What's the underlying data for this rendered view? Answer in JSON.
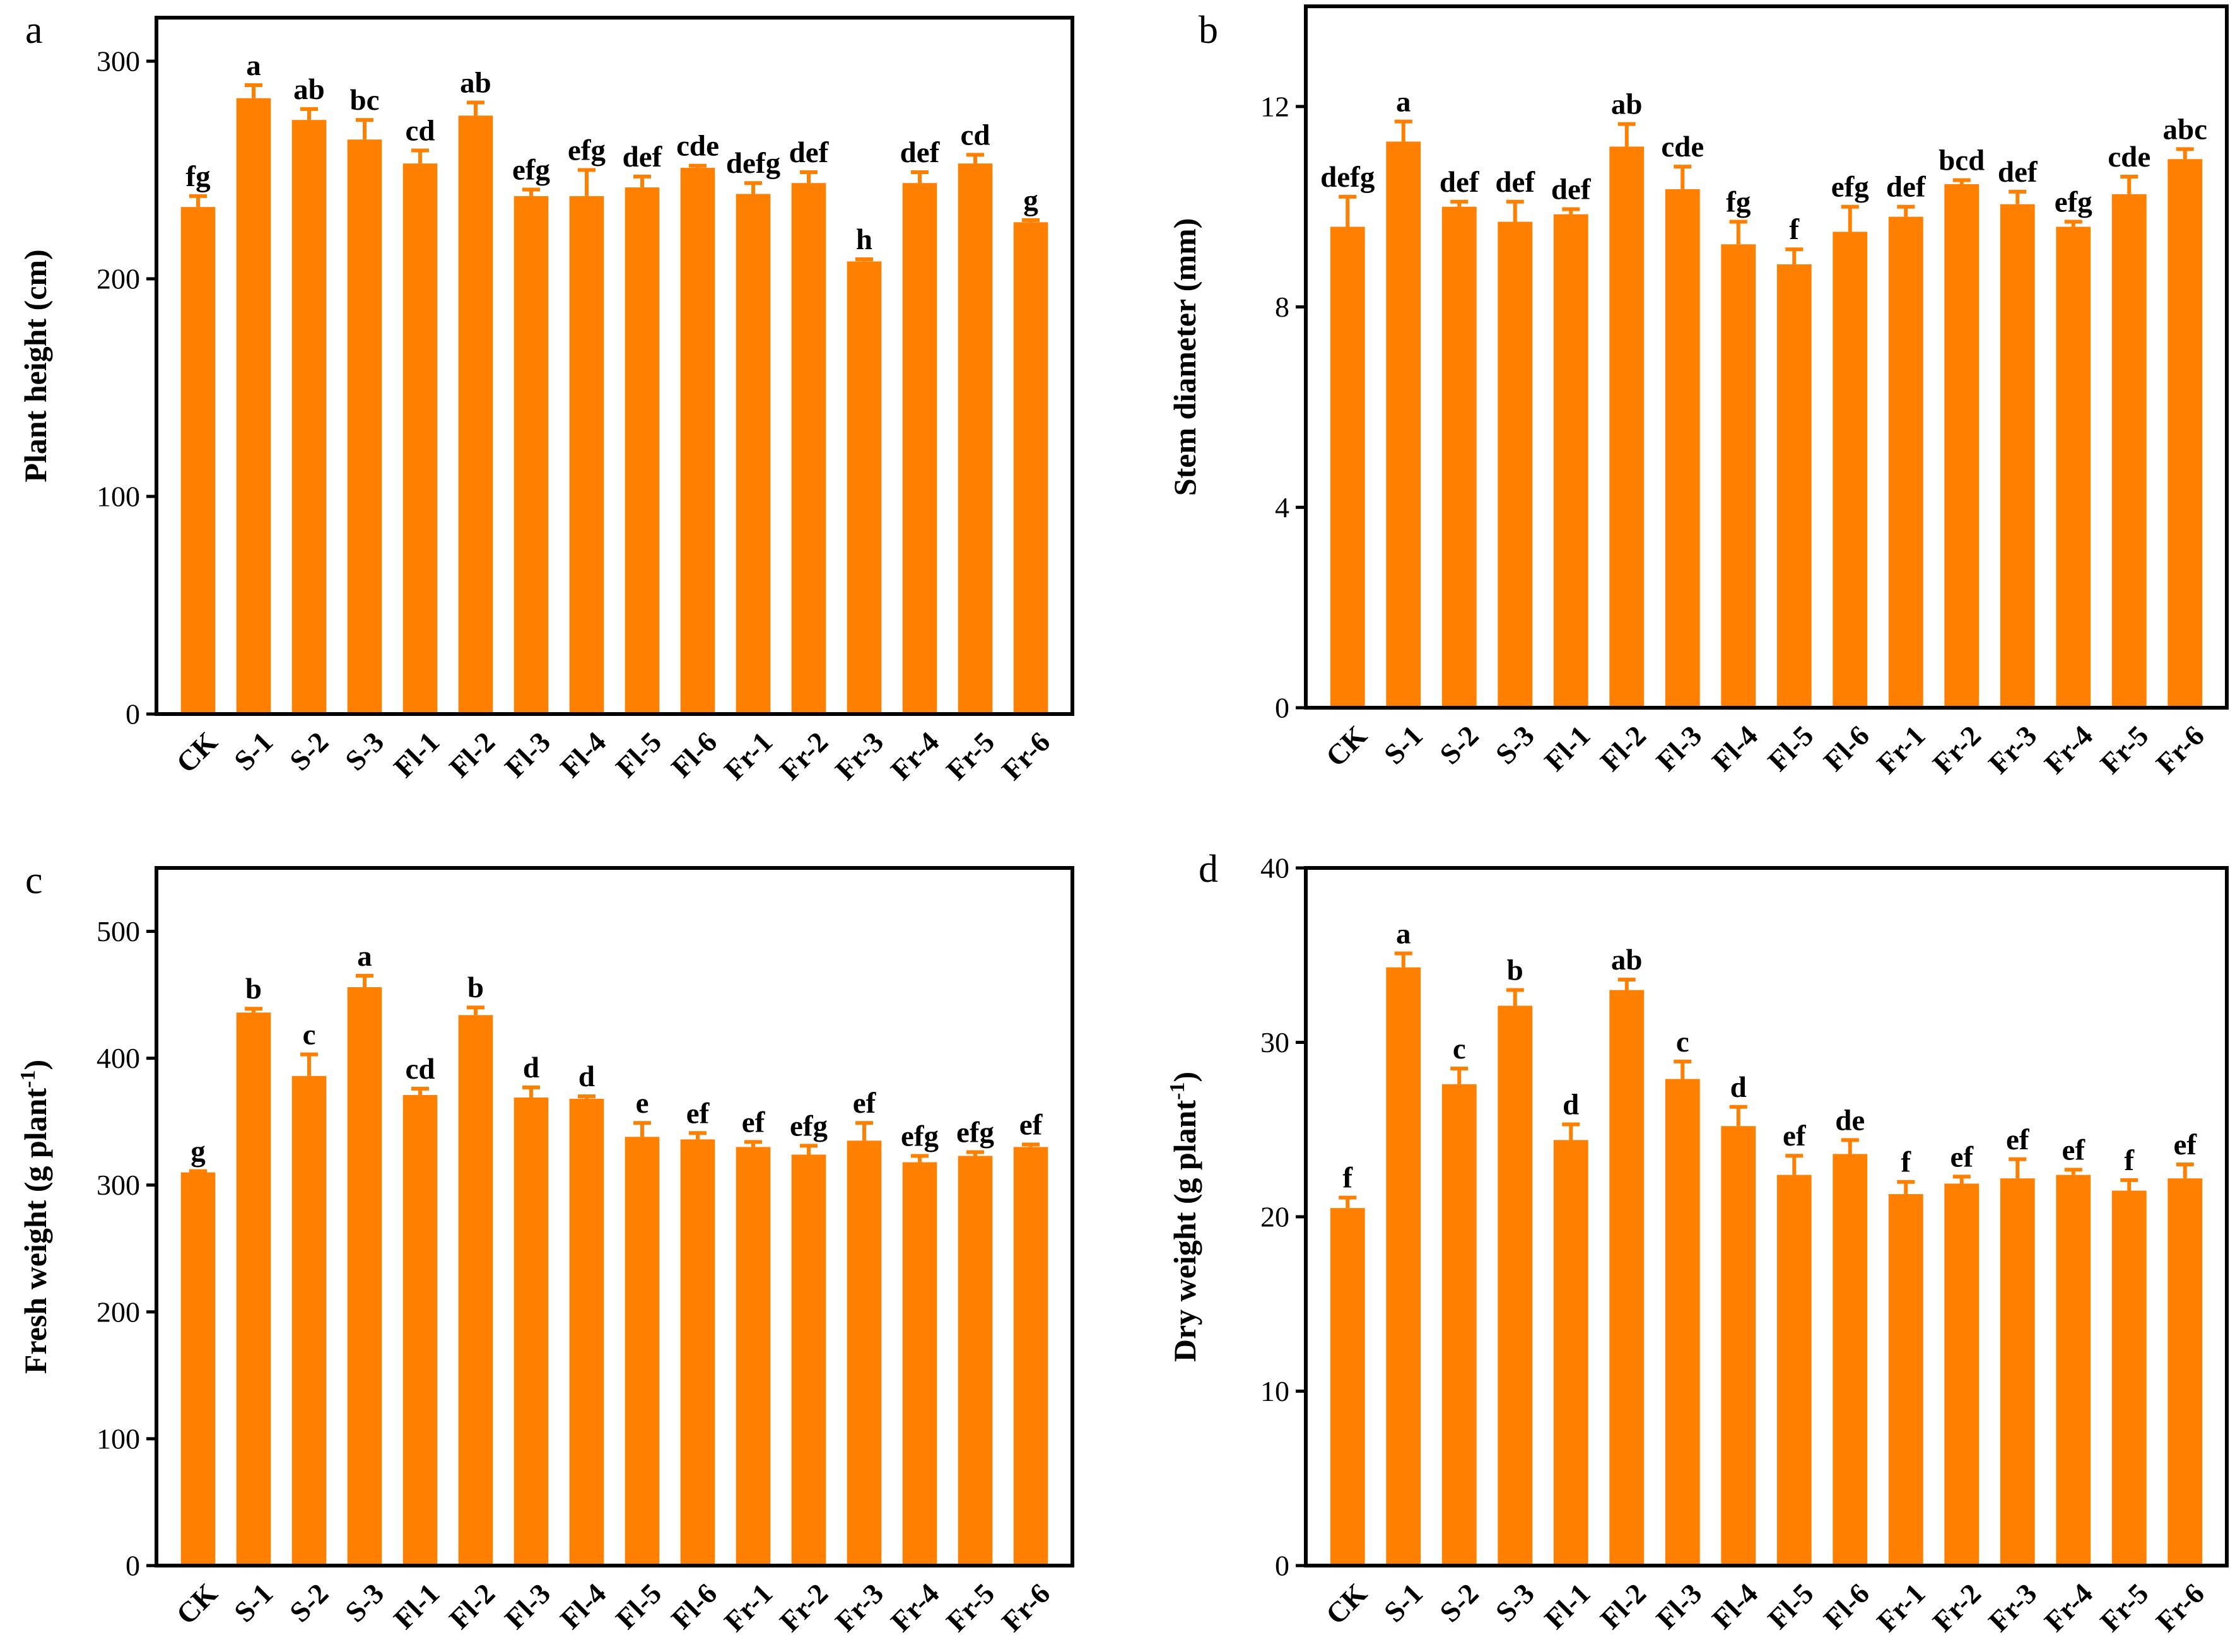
{
  "colors": {
    "bar": "#ff8000",
    "axis": "#000000",
    "background": "#ffffff"
  },
  "chart_data": [
    {
      "panel": "a",
      "type": "bar",
      "categories": [
        "CK",
        "S-1",
        "S-2",
        "S-3",
        "Fl-1",
        "Fl-2",
        "Fl-3",
        "Fl-4",
        "Fl-5",
        "Fl-6",
        "Fr-1",
        "Fr-2",
        "Fr-3",
        "Fr-4",
        "Fr-5",
        "Fr-6"
      ],
      "values": [
        233,
        283,
        273,
        264,
        253,
        275,
        238,
        238,
        242,
        251,
        239,
        244,
        208,
        244,
        253,
        226
      ],
      "errors": [
        5,
        6,
        5,
        9,
        6,
        6,
        3,
        12,
        5,
        1,
        5,
        5,
        1,
        5,
        4,
        1
      ],
      "letters": [
        "fg",
        "a",
        "ab",
        "bc",
        "cd",
        "ab",
        "efg",
        "efg",
        "def",
        "cde",
        "defg",
        "def",
        "h",
        "def",
        "cd",
        "g"
      ],
      "ylabel": "Plant height (cm)",
      "ylabel_sup": "",
      "ylabel_tail": "",
      "ylim": [
        0,
        320
      ],
      "yticks": [
        0,
        100,
        200,
        300
      ],
      "grid": false
    },
    {
      "panel": "b",
      "type": "bar",
      "categories": [
        "CK",
        "S-1",
        "S-2",
        "S-3",
        "Fl-1",
        "Fl-2",
        "Fl-3",
        "Fl-4",
        "Fl-5",
        "Fl-6",
        "Fr-1",
        "Fr-2",
        "Fr-3",
        "Fr-4",
        "Fr-5",
        "Fr-6"
      ],
      "values": [
        9.6,
        11.3,
        10.0,
        9.7,
        9.85,
        11.2,
        10.35,
        9.25,
        8.85,
        9.5,
        9.8,
        10.45,
        10.05,
        9.6,
        10.25,
        10.95
      ],
      "errors": [
        0.6,
        0.4,
        0.1,
        0.4,
        0.1,
        0.45,
        0.45,
        0.45,
        0.3,
        0.5,
        0.2,
        0.08,
        0.25,
        0.1,
        0.35,
        0.2
      ],
      "letters": [
        "defg",
        "a",
        "def",
        "def",
        "def",
        "ab",
        "cde",
        "fg",
        "f",
        "efg",
        "def",
        "bcd",
        "def",
        "efg",
        "cde",
        "abc"
      ],
      "ylabel": "Stem diameter (mm)",
      "ylabel_sup": "",
      "ylabel_tail": "",
      "ylim": [
        0,
        14
      ],
      "yticks": [
        0,
        4,
        8,
        12
      ],
      "grid": false
    },
    {
      "panel": "c",
      "type": "bar",
      "categories": [
        "CK",
        "S-1",
        "S-2",
        "S-3",
        "Fl-1",
        "Fl-2",
        "Fl-3",
        "Fl-4",
        "Fl-5",
        "Fl-6",
        "Fr-1",
        "Fr-2",
        "Fr-3",
        "Fr-4",
        "Fr-5",
        "Fr-6"
      ],
      "values": [
        310,
        436,
        386,
        456,
        371,
        434,
        369,
        368,
        338,
        336,
        330,
        324,
        335,
        318,
        323,
        330
      ],
      "errors": [
        1,
        3,
        17,
        9,
        5,
        6,
        8,
        2,
        11,
        5,
        4,
        7,
        14,
        5,
        3,
        2
      ],
      "letters": [
        "g",
        "b",
        "c",
        "a",
        "cd",
        "b",
        "d",
        "d",
        "e",
        "ef",
        "ef",
        "efg",
        "ef",
        "efg",
        "efg",
        "ef"
      ],
      "ylabel": "Fresh weight (g plant",
      "ylabel_sup": "-1",
      "ylabel_tail": ")",
      "ylim": [
        0,
        550
      ],
      "yticks": [
        0,
        100,
        200,
        300,
        400,
        500
      ],
      "grid": false
    },
    {
      "panel": "d",
      "type": "bar",
      "categories": [
        "CK",
        "S-1",
        "S-2",
        "S-3",
        "Fl-1",
        "Fl-2",
        "Fl-3",
        "Fl-4",
        "Fl-5",
        "Fl-6",
        "Fr-1",
        "Fr-2",
        "Fr-3",
        "Fr-4",
        "Fr-5",
        "Fr-6"
      ],
      "values": [
        20.5,
        34.3,
        27.6,
        32.1,
        24.4,
        33.0,
        27.9,
        25.2,
        22.4,
        23.6,
        21.3,
        21.9,
        22.2,
        22.4,
        21.5,
        22.2
      ],
      "errors": [
        0.6,
        0.8,
        0.9,
        0.9,
        0.9,
        0.6,
        1.0,
        1.1,
        1.1,
        0.8,
        0.7,
        0.4,
        1.1,
        0.3,
        0.6,
        0.8
      ],
      "letters": [
        "f",
        "a",
        "c",
        "b",
        "d",
        "ab",
        "c",
        "d",
        "ef",
        "de",
        "f",
        "ef",
        "ef",
        "ef",
        "f",
        "ef"
      ],
      "ylabel": "Dry weight (g plant",
      "ylabel_sup": "-1",
      "ylabel_tail": ")",
      "ylim": [
        0,
        40
      ],
      "yticks": [
        0,
        10,
        20,
        30,
        40
      ],
      "grid": false
    }
  ]
}
